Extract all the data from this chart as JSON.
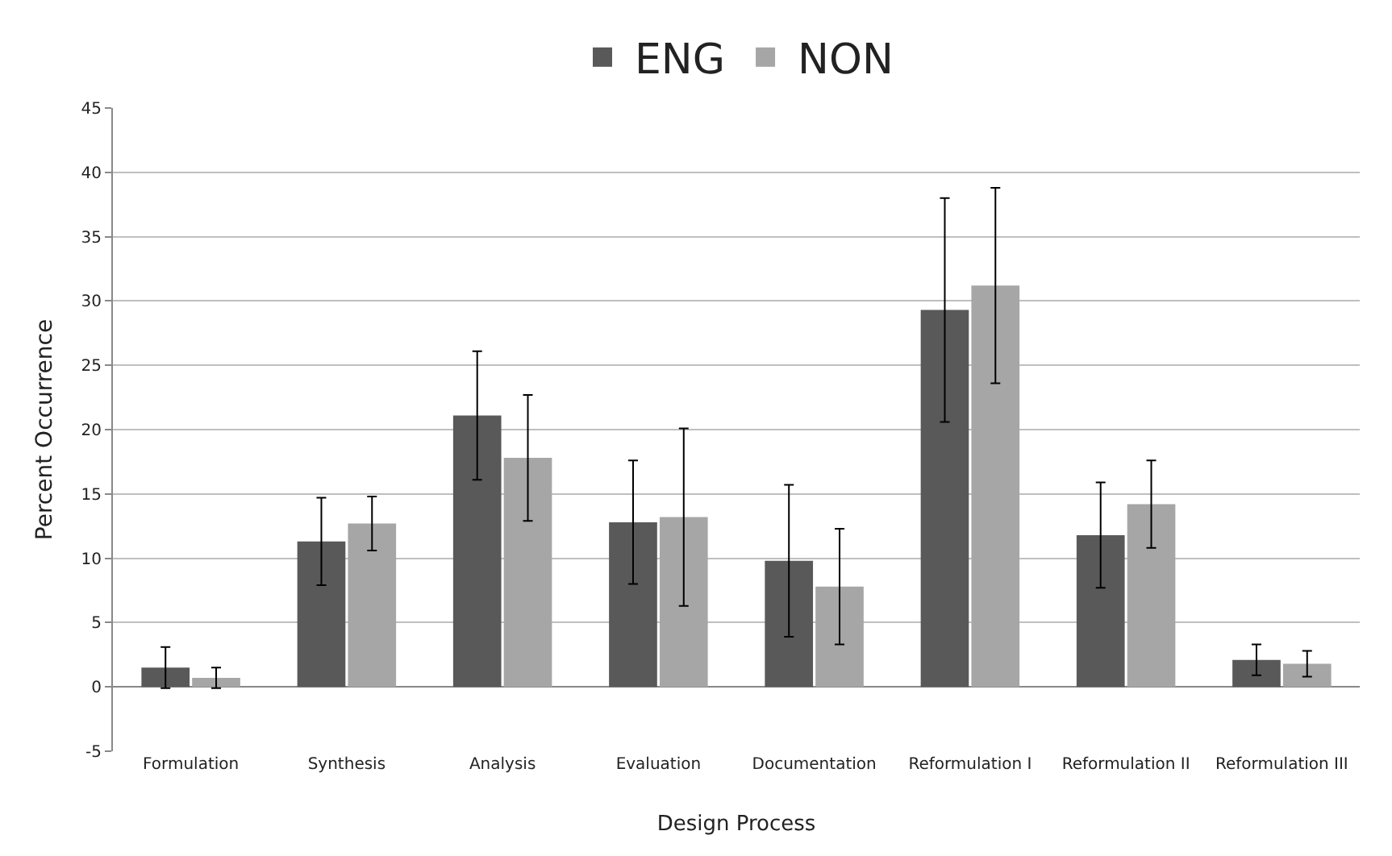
{
  "chart_data": {
    "type": "bar",
    "xlabel": "Design Process",
    "ylabel": "Percent Occurrence",
    "categories": [
      "Formulation",
      "Synthesis",
      "Analysis",
      "Evaluation",
      "Documentation",
      "Reformulation I",
      "Reformulation II",
      "Reformulation III"
    ],
    "series": [
      {
        "name": "ENG",
        "color": "#595959",
        "values": [
          1.5,
          11.3,
          21.1,
          12.8,
          9.8,
          29.3,
          11.8,
          2.1
        ],
        "errors": [
          1.6,
          3.4,
          5.0,
          4.8,
          5.9,
          8.7,
          4.1,
          1.2
        ]
      },
      {
        "name": "NON",
        "color": "#a6a6a6",
        "values": [
          0.7,
          12.7,
          17.8,
          13.2,
          7.8,
          31.2,
          14.2,
          1.8
        ],
        "errors": [
          0.8,
          2.1,
          4.9,
          6.9,
          4.5,
          7.6,
          3.4,
          1.0
        ]
      }
    ],
    "ylim": [
      -5,
      45
    ],
    "yticks": [
      -5,
      0,
      5,
      10,
      15,
      20,
      25,
      30,
      35,
      40,
      45
    ],
    "grid": "y",
    "legend": "top"
  }
}
